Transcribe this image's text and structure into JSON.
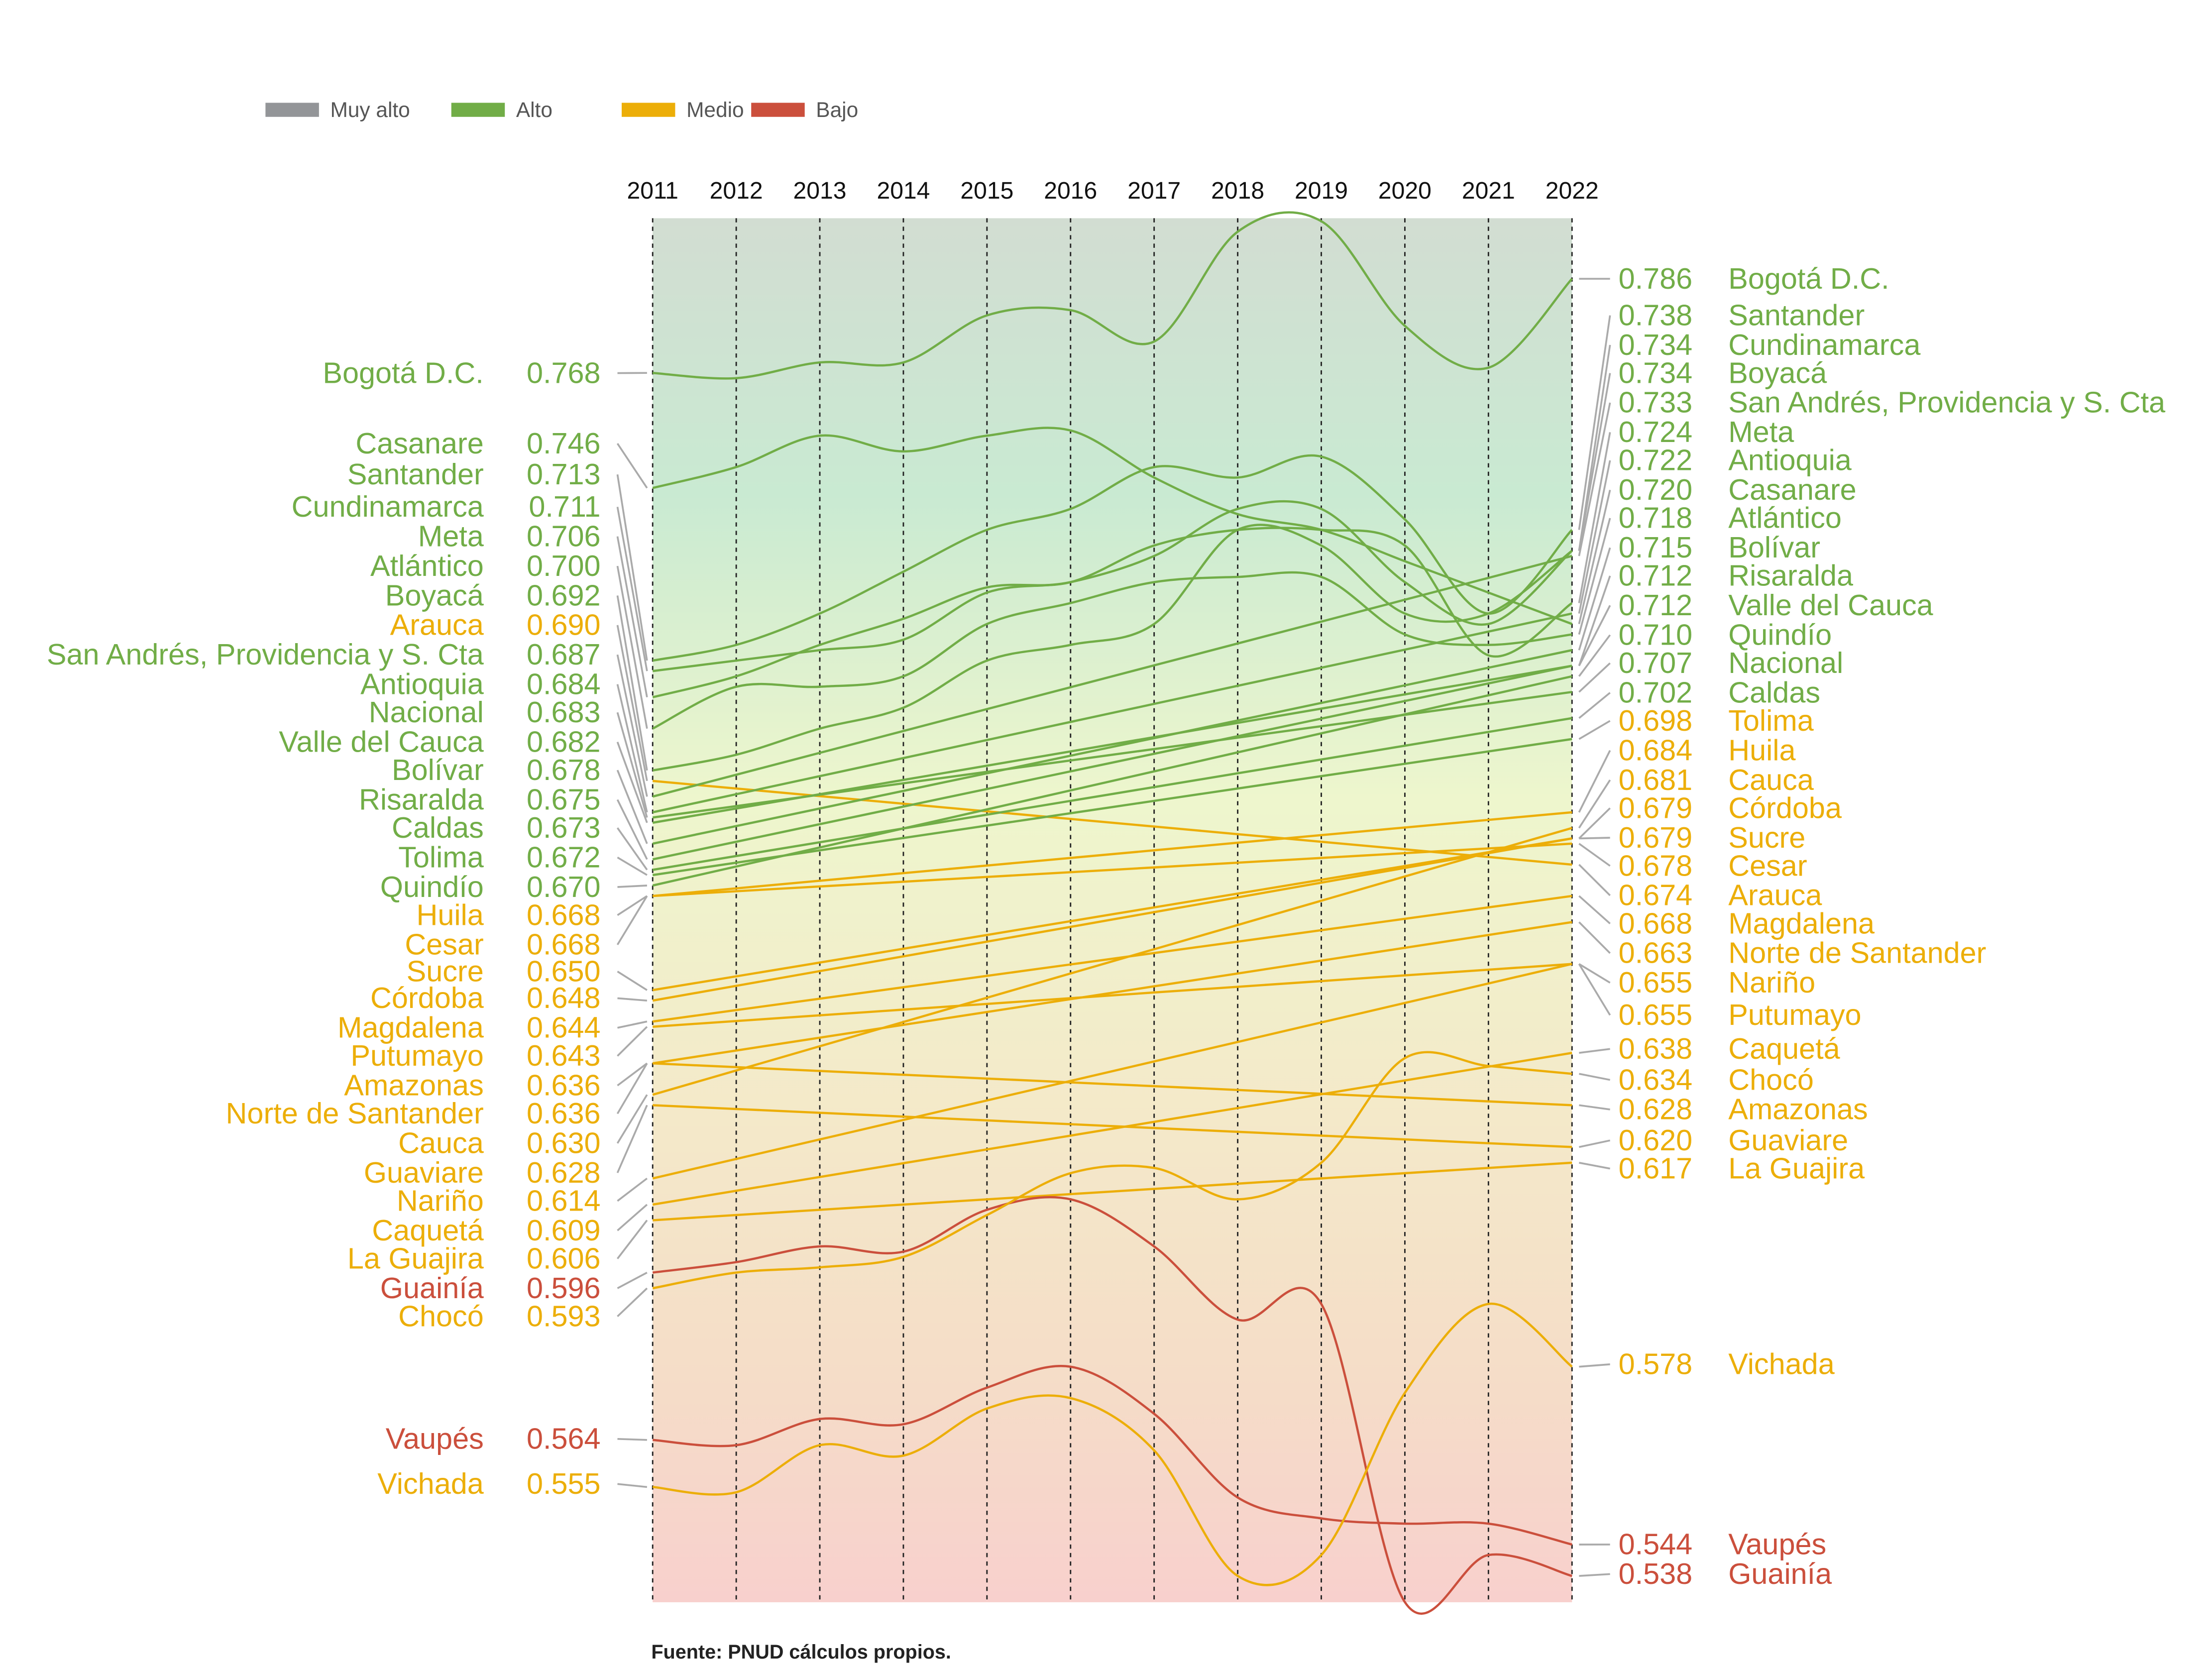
{
  "colors": {
    "Muy alto": "#939598",
    "Alto": "#71ad47",
    "Medio": "#ecae08",
    "Bajo": "#cb4f3c"
  },
  "legend": [
    {
      "label": "Muy alto",
      "level": "Muy alto"
    },
    {
      "label": "Alto",
      "level": "Alto"
    },
    {
      "label": "Medio",
      "level": "Medio"
    },
    {
      "label": "Bajo",
      "level": "Bajo"
    }
  ],
  "source": "Fuente: PNUD cálculos propios.",
  "chart_data": {
    "type": "line",
    "x": [
      "2011",
      "2012",
      "2013",
      "2014",
      "2015",
      "2016",
      "2017",
      "2018",
      "2019",
      "2020",
      "2021",
      "2022"
    ],
    "ylim": [
      0.533,
      0.797
    ],
    "grid": "vertical dashed lines at each year",
    "legend_position": "top-left",
    "series": [
      {
        "name": "Bogotá D.C.",
        "start": "0.768",
        "end": "0.786",
        "start_level": "Alto",
        "end_level": "Alto",
        "values": [
          0.768,
          0.767,
          0.77,
          0.77,
          0.779,
          0.78,
          0.774,
          0.795,
          0.797,
          0.777,
          0.769,
          0.786
        ]
      },
      {
        "name": "Casanare",
        "start": "0.746",
        "end": "0.720",
        "start_level": "Alto",
        "end_level": "Alto",
        "values": [
          0.746,
          0.75,
          0.756,
          0.753,
          0.756,
          0.757,
          0.748,
          0.741,
          0.738,
          0.732,
          0.726,
          0.72
        ]
      },
      {
        "name": "Santander",
        "start": "0.713",
        "end": "0.738",
        "start_level": "Alto",
        "end_level": "Alto",
        "values": [
          0.713,
          0.716,
          0.722,
          0.73,
          0.738,
          0.742,
          0.75,
          0.748,
          0.752,
          0.74,
          0.722,
          0.738
        ]
      },
      {
        "name": "Cundinamarca",
        "start": "0.711",
        "end": "0.734",
        "start_level": "Alto",
        "end_level": "Alto",
        "values": [
          0.711,
          0.713,
          0.715,
          0.717,
          0.726,
          0.728,
          0.733,
          0.742,
          0.742,
          0.728,
          0.72,
          0.734
        ]
      },
      {
        "name": "Meta",
        "start": "0.706",
        "end": "0.724",
        "start_level": "Alto",
        "end_level": "Alto",
        "values": [
          0.706,
          0.71,
          0.716,
          0.721,
          0.727,
          0.728,
          0.735,
          0.738,
          0.738,
          0.735,
          0.714,
          0.724
        ]
      },
      {
        "name": "Atlántico",
        "start": "0.700",
        "end": "0.718",
        "start_level": "Alto",
        "end_level": "Alto",
        "values": [
          0.7,
          0.708,
          0.708,
          0.71,
          0.72,
          0.724,
          0.728,
          0.729,
          0.729,
          0.718,
          0.716,
          0.718
        ]
      },
      {
        "name": "Boyacá",
        "start": "0.692",
        "end": "0.734",
        "start_level": "Alto",
        "end_level": "Alto",
        "values": [
          0.692,
          0.695,
          0.7,
          0.704,
          0.713,
          0.716,
          0.72,
          0.738,
          0.735,
          0.722,
          0.722,
          0.734
        ]
      },
      {
        "name": "Arauca",
        "start": "0.690",
        "end": "0.674",
        "start_level": "Medio",
        "end_level": "Medio",
        "values": [
          0.69,
          null,
          null,
          null,
          null,
          null,
          null,
          null,
          null,
          null,
          null,
          0.674
        ]
      },
      {
        "name": "San Andrés, Providencia y S. Cta",
        "start": "0.687",
        "end": "0.733",
        "start_level": "Alto",
        "end_level": "Alto",
        "values": [
          0.687,
          null,
          null,
          null,
          null,
          null,
          null,
          null,
          null,
          null,
          null,
          0.733
        ]
      },
      {
        "name": "Antioquia",
        "start": "0.684",
        "end": "0.722",
        "start_level": "Alto",
        "end_level": "Alto",
        "values": [
          0.684,
          null,
          null,
          null,
          null,
          null,
          null,
          null,
          null,
          null,
          null,
          0.722
        ]
      },
      {
        "name": "Nacional",
        "start": "0.683",
        "end": "0.707",
        "start_level": "Alto",
        "end_level": "Alto",
        "values": [
          0.683,
          null,
          null,
          null,
          null,
          null,
          null,
          null,
          null,
          null,
          null,
          0.707
        ]
      },
      {
        "name": "Valle del Cauca",
        "start": "0.682",
        "end": "0.712",
        "start_level": "Alto",
        "end_level": "Alto",
        "values": [
          0.682,
          null,
          null,
          null,
          null,
          null,
          null,
          null,
          null,
          null,
          null,
          0.712
        ]
      },
      {
        "name": "Bolívar",
        "start": "0.678",
        "end": "0.715",
        "start_level": "Alto",
        "end_level": "Alto",
        "values": [
          0.678,
          null,
          null,
          null,
          null,
          null,
          null,
          null,
          null,
          null,
          null,
          0.715
        ]
      },
      {
        "name": "Risaralda",
        "start": "0.675",
        "end": "0.712",
        "start_level": "Alto",
        "end_level": "Alto",
        "values": [
          0.675,
          null,
          null,
          null,
          null,
          null,
          null,
          null,
          null,
          null,
          null,
          0.712
        ]
      },
      {
        "name": "Caldas",
        "start": "0.673",
        "end": "0.702",
        "start_level": "Alto",
        "end_level": "Alto",
        "values": [
          0.673,
          null,
          null,
          null,
          null,
          null,
          null,
          null,
          null,
          null,
          null,
          0.702
        ]
      },
      {
        "name": "Tolima",
        "start": "0.672",
        "end": "0.698",
        "start_level": "Alto",
        "end_level": "Medio",
        "values": [
          0.672,
          null,
          null,
          null,
          null,
          null,
          null,
          null,
          null,
          null,
          null,
          0.698
        ]
      },
      {
        "name": "Quindío",
        "start": "0.670",
        "end": "0.710",
        "start_level": "Alto",
        "end_level": "Alto",
        "values": [
          0.67,
          null,
          null,
          null,
          null,
          null,
          null,
          null,
          null,
          null,
          null,
          0.71
        ]
      },
      {
        "name": "Huila",
        "start": "0.668",
        "end": "0.684",
        "start_level": "Medio",
        "end_level": "Medio",
        "values": [
          0.668,
          null,
          null,
          null,
          null,
          null,
          null,
          null,
          null,
          null,
          null,
          0.684
        ]
      },
      {
        "name": "Cesar",
        "start": "0.668",
        "end": "0.678",
        "start_level": "Medio",
        "end_level": "Medio",
        "values": [
          0.668,
          null,
          null,
          null,
          null,
          null,
          null,
          null,
          null,
          null,
          null,
          0.678
        ]
      },
      {
        "name": "Sucre",
        "start": "0.650",
        "end": "0.679",
        "start_level": "Medio",
        "end_level": "Medio",
        "values": [
          0.65,
          null,
          null,
          null,
          null,
          null,
          null,
          null,
          null,
          null,
          null,
          0.679
        ]
      },
      {
        "name": "Córdoba",
        "start": "0.648",
        "end": "0.679",
        "start_level": "Medio",
        "end_level": "Medio",
        "values": [
          0.648,
          null,
          null,
          null,
          null,
          null,
          null,
          null,
          null,
          null,
          null,
          0.679
        ]
      },
      {
        "name": "Magdalena",
        "start": "0.644",
        "end": "0.668",
        "start_level": "Medio",
        "end_level": "Medio",
        "values": [
          0.644,
          null,
          null,
          null,
          null,
          null,
          null,
          null,
          null,
          null,
          null,
          0.668
        ]
      },
      {
        "name": "Putumayo",
        "start": "0.643",
        "end": "0.655",
        "start_level": "Medio",
        "end_level": "Medio",
        "values": [
          0.643,
          null,
          null,
          null,
          null,
          null,
          null,
          null,
          null,
          null,
          null,
          0.655
        ]
      },
      {
        "name": "Amazonas",
        "start": "0.636",
        "end": "0.628",
        "start_level": "Medio",
        "end_level": "Medio",
        "values": [
          0.636,
          null,
          null,
          null,
          null,
          null,
          null,
          null,
          null,
          null,
          null,
          0.628
        ]
      },
      {
        "name": "Norte de Santander",
        "start": "0.636",
        "end": "0.663",
        "start_level": "Medio",
        "end_level": "Medio",
        "values": [
          0.636,
          null,
          null,
          null,
          null,
          null,
          null,
          null,
          null,
          null,
          null,
          0.663
        ]
      },
      {
        "name": "Cauca",
        "start": "0.630",
        "end": "0.681",
        "start_level": "Medio",
        "end_level": "Medio",
        "values": [
          0.63,
          null,
          null,
          null,
          null,
          null,
          null,
          null,
          null,
          null,
          null,
          0.681
        ]
      },
      {
        "name": "Guaviare",
        "start": "0.628",
        "end": "0.620",
        "start_level": "Medio",
        "end_level": "Medio",
        "values": [
          0.628,
          null,
          null,
          null,
          null,
          null,
          null,
          null,
          null,
          null,
          null,
          0.62
        ]
      },
      {
        "name": "Nariño",
        "start": "0.614",
        "end": "0.655",
        "start_level": "Medio",
        "end_level": "Medio",
        "values": [
          0.614,
          null,
          null,
          null,
          null,
          null,
          null,
          null,
          null,
          null,
          null,
          0.655
        ]
      },
      {
        "name": "Caquetá",
        "start": "0.609",
        "end": "0.638",
        "start_level": "Medio",
        "end_level": "Medio",
        "values": [
          0.609,
          null,
          null,
          null,
          null,
          null,
          null,
          null,
          null,
          null,
          null,
          0.638
        ]
      },
      {
        "name": "La Guajira",
        "start": "0.606",
        "end": "0.617",
        "start_level": "Medio",
        "end_level": "Medio",
        "values": [
          0.606,
          null,
          null,
          null,
          null,
          null,
          null,
          null,
          null,
          null,
          null,
          0.617
        ]
      },
      {
        "name": "Guainía",
        "start": "0.596",
        "end": "0.538",
        "start_level": "Bajo",
        "end_level": "Bajo",
        "values": [
          0.596,
          0.598,
          0.601,
          0.6,
          0.608,
          0.61,
          0.601,
          0.587,
          0.59,
          0.533,
          0.542,
          0.538
        ]
      },
      {
        "name": "Chocó",
        "start": "0.593",
        "end": "0.634",
        "start_level": "Medio",
        "end_level": "Medio",
        "values": [
          0.593,
          0.596,
          0.597,
          0.599,
          0.607,
          0.615,
          0.616,
          0.61,
          0.617,
          0.637,
          null,
          0.634
        ]
      },
      {
        "name": "Vaupés",
        "start": "0.564",
        "end": "0.544",
        "start_level": "Bajo",
        "end_level": "Bajo",
        "values": [
          0.564,
          0.563,
          0.568,
          0.567,
          0.574,
          0.578,
          0.569,
          0.553,
          0.549,
          0.548,
          0.548,
          0.544
        ]
      },
      {
        "name": "Vichada",
        "start": "0.555",
        "end": "0.578",
        "start_level": "Medio",
        "end_level": "Medio",
        "values": [
          0.555,
          0.554,
          0.563,
          0.561,
          0.57,
          0.572,
          0.562,
          0.538,
          0.542,
          0.573,
          0.59,
          0.578
        ]
      }
    ]
  }
}
